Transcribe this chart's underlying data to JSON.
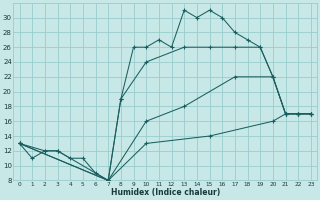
{
  "xlabel": "Humidex (Indice chaleur)",
  "bg_color": "#c8e8e8",
  "grid_color": "#99cccc",
  "line_color": "#1a5f5f",
  "xlim": [
    0,
    23
  ],
  "ylim": [
    8,
    31
  ],
  "xtick_vals": [
    0,
    1,
    2,
    3,
    4,
    5,
    6,
    7,
    8,
    9,
    10,
    11,
    12,
    13,
    14,
    15,
    16,
    17,
    18,
    19,
    20,
    21,
    22,
    23
  ],
  "ytick_vals": [
    8,
    10,
    12,
    14,
    16,
    18,
    20,
    22,
    24,
    26,
    28,
    30
  ],
  "series": [
    {
      "x": [
        0,
        1,
        2,
        3,
        4,
        5,
        6,
        7,
        8,
        9,
        10,
        11,
        12,
        13,
        14,
        15,
        16,
        17,
        18,
        19,
        20,
        21,
        22,
        23
      ],
      "y": [
        13,
        11,
        12,
        12,
        11,
        11,
        9,
        8,
        19,
        26,
        26,
        27,
        26,
        31,
        30,
        31,
        30,
        28,
        27,
        26,
        22,
        17,
        17,
        17
      ]
    },
    {
      "x": [
        0,
        2,
        3,
        7,
        8,
        10,
        13,
        15,
        17,
        19,
        20,
        21,
        22,
        23
      ],
      "y": [
        13,
        12,
        12,
        8,
        19,
        24,
        26,
        26,
        26,
        26,
        22,
        17,
        17,
        17
      ]
    },
    {
      "x": [
        0,
        7,
        10,
        13,
        17,
        20,
        21,
        22,
        23
      ],
      "y": [
        13,
        8,
        16,
        18,
        22,
        22,
        17,
        17,
        17
      ]
    },
    {
      "x": [
        0,
        7,
        10,
        15,
        20,
        21,
        22,
        23
      ],
      "y": [
        13,
        8,
        13,
        14,
        16,
        17,
        17,
        17
      ]
    }
  ]
}
